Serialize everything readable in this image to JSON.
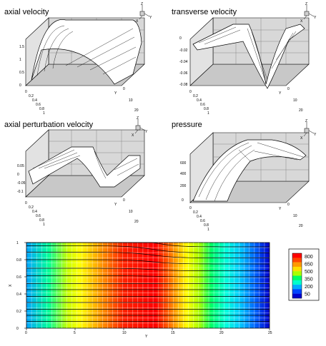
{
  "chart_data": [
    {
      "type": "surface",
      "title": "axial velocity",
      "x_ticks": [
        "0",
        "0.2",
        "0.4",
        "0.6",
        "0.8",
        "1"
      ],
      "y_ticks": [
        "0",
        "10",
        "20"
      ],
      "z_ticks": [
        "0",
        "0.5",
        "1",
        "1.5"
      ],
      "ylabel": "Y",
      "axis_triad": [
        "Z",
        "X",
        "Y"
      ]
    },
    {
      "type": "surface",
      "title": "transverse velocity",
      "x_ticks": [
        "0",
        "0.2",
        "0.4",
        "0.6",
        "0.8",
        "1"
      ],
      "y_ticks": [
        "0",
        "10",
        "20"
      ],
      "z_ticks": [
        "0",
        "-0.02",
        "-0.04",
        "-0.06",
        "-0.08"
      ],
      "ylabel": "Y",
      "axis_triad": [
        "Z",
        "X",
        "Y"
      ]
    },
    {
      "type": "surface",
      "title": "axial perturbation velocity",
      "x_ticks": [
        "0",
        "0.2",
        "0.4",
        "0.6",
        "0.8",
        "1"
      ],
      "y_ticks": [
        "0",
        "10",
        "20"
      ],
      "z_ticks": [
        "0.05",
        "0",
        "-0.05",
        "-0.1"
      ],
      "ylabel": "Y",
      "axis_triad": [
        "Z",
        "X",
        "Y"
      ]
    },
    {
      "type": "surface",
      "title": "pressure",
      "x_ticks": [
        "0",
        "0.2",
        "0.4",
        "0.6",
        "0.8",
        "1"
      ],
      "y_ticks": [
        "0",
        "10",
        "20"
      ],
      "z_ticks": [
        "0",
        "200",
        "400",
        "600"
      ],
      "ylabel": "Y",
      "axis_triad": [
        "Z",
        "X",
        "Y"
      ]
    },
    {
      "type": "heatmap",
      "x_ticks": [
        "0",
        "5",
        "10",
        "15",
        "20",
        "25"
      ],
      "y_ticks": [
        "0",
        "0.2",
        "0.4",
        "0.6",
        "0.8",
        "1"
      ],
      "xlabel": "Y",
      "ylabel": "X",
      "xlim": [
        0,
        25
      ],
      "ylim": [
        0,
        1
      ],
      "legend": {
        "entries": [
          "800",
          "650",
          "500",
          "350",
          "200",
          "50"
        ],
        "colors": [
          "#ff0000",
          "#ff8c00",
          "#ffff00",
          "#00ff66",
          "#00ffff",
          "#0000ff"
        ]
      }
    }
  ]
}
